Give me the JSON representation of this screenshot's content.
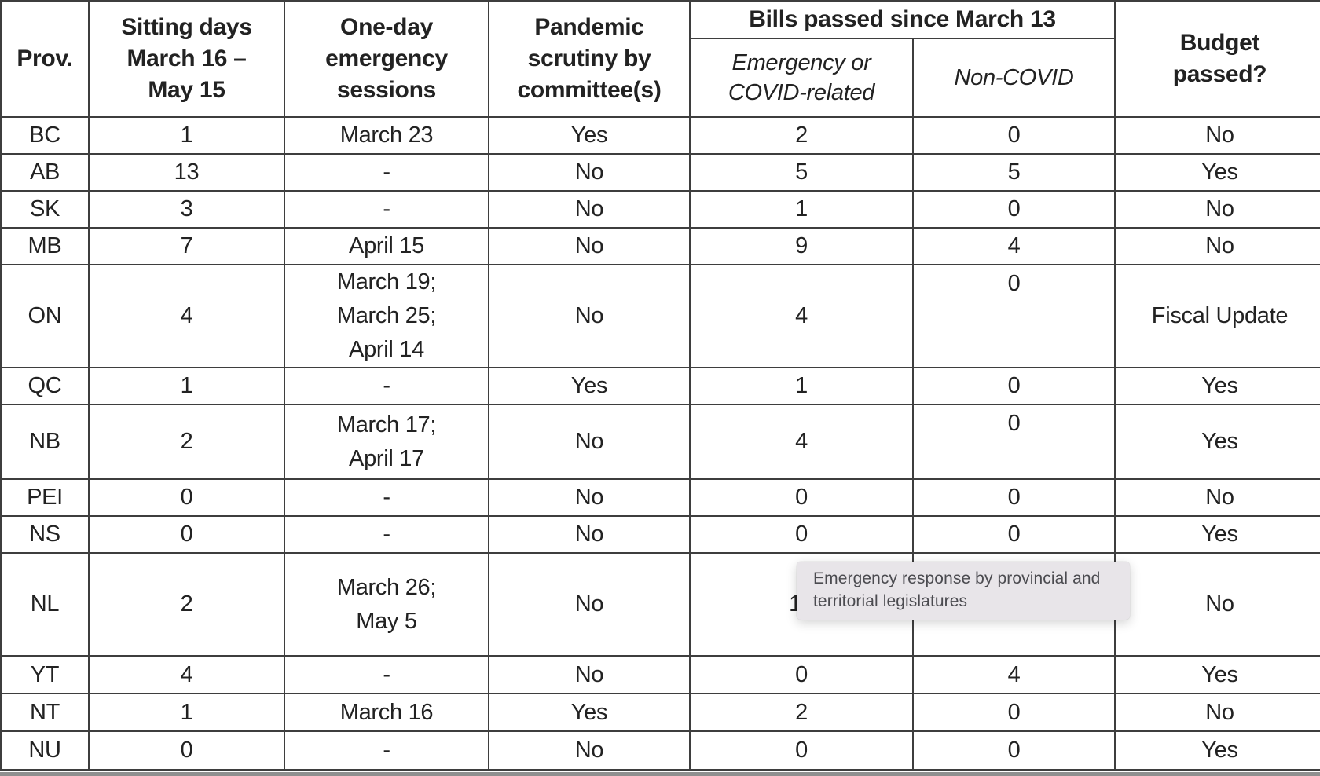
{
  "table": {
    "headers": {
      "prov": "Prov.",
      "sitting_days": "Sitting days\nMarch 16 –\nMay 15",
      "one_day": "One-day\nemergency\nsessions",
      "pandemic": "Pandemic\nscrutiny by\ncommittee(s)",
      "bills_group": "Bills passed since March 13",
      "bills_emergency": "Emergency or\nCOVID-related",
      "bills_non_covid": "Non-COVID",
      "budget": "Budget\npassed?"
    },
    "rows": [
      {
        "prov": "BC",
        "sitting_days": "1",
        "one_day": "March 23",
        "pandemic": "Yes",
        "bills_emergency": "2",
        "bills_non_covid": "0",
        "budget": "No"
      },
      {
        "prov": "AB",
        "sitting_days": "13",
        "one_day": "-",
        "pandemic": "No",
        "bills_emergency": "5",
        "bills_non_covid": "5",
        "budget": "Yes"
      },
      {
        "prov": "SK",
        "sitting_days": "3",
        "one_day": "-",
        "pandemic": "No",
        "bills_emergency": "1",
        "bills_non_covid": "0",
        "budget": "No"
      },
      {
        "prov": "MB",
        "sitting_days": "7",
        "one_day": "April 15",
        "pandemic": "No",
        "bills_emergency": "9",
        "bills_non_covid": "4",
        "budget": "No"
      },
      {
        "prov": "ON",
        "sitting_days": "4",
        "one_day": "March 19;\nMarch 25;\nApril 14",
        "pandemic": "No",
        "bills_emergency": "4",
        "bills_non_covid": "0",
        "budget": "Fiscal Update"
      },
      {
        "prov": "QC",
        "sitting_days": "1",
        "one_day": "-",
        "pandemic": "Yes",
        "bills_emergency": "1",
        "bills_non_covid": "0",
        "budget": "Yes"
      },
      {
        "prov": "NB",
        "sitting_days": "2",
        "one_day": "March 17;\nApril 17",
        "pandemic": "No",
        "bills_emergency": "4",
        "bills_non_covid": "0",
        "budget": "Yes"
      },
      {
        "prov": "PEI",
        "sitting_days": "0",
        "one_day": "-",
        "pandemic": "No",
        "bills_emergency": "0",
        "bills_non_covid": "0",
        "budget": "No"
      },
      {
        "prov": "NS",
        "sitting_days": "0",
        "one_day": "-",
        "pandemic": "No",
        "bills_emergency": "0",
        "bills_non_covid": "0",
        "budget": "Yes"
      },
      {
        "prov": "NL",
        "sitting_days": "2",
        "one_day": "March 26;\nMay 5",
        "pandemic": "No",
        "bills_emergency": "10",
        "bills_non_covid": "",
        "budget": "No"
      },
      {
        "prov": "YT",
        "sitting_days": "4",
        "one_day": "-",
        "pandemic": "No",
        "bills_emergency": "0",
        "bills_non_covid": "4",
        "budget": "Yes"
      },
      {
        "prov": "NT",
        "sitting_days": "1",
        "one_day": "March 16",
        "pandemic": "Yes",
        "bills_emergency": "2",
        "bills_non_covid": "0",
        "budget": "No"
      },
      {
        "prov": "NU",
        "sitting_days": "0",
        "one_day": "-",
        "pandemic": "No",
        "bills_emergency": "0",
        "bills_non_covid": "0",
        "budget": "Yes"
      }
    ]
  },
  "tooltip": {
    "text": "Emergency response by provincial and territorial legislatures"
  },
  "colors": {
    "border": "#3e3e3e",
    "text": "#222222",
    "tooltip_bg": "#e8e5e9",
    "tooltip_text": "#4b4b50",
    "bottom_bar": "#8f8f8f"
  }
}
